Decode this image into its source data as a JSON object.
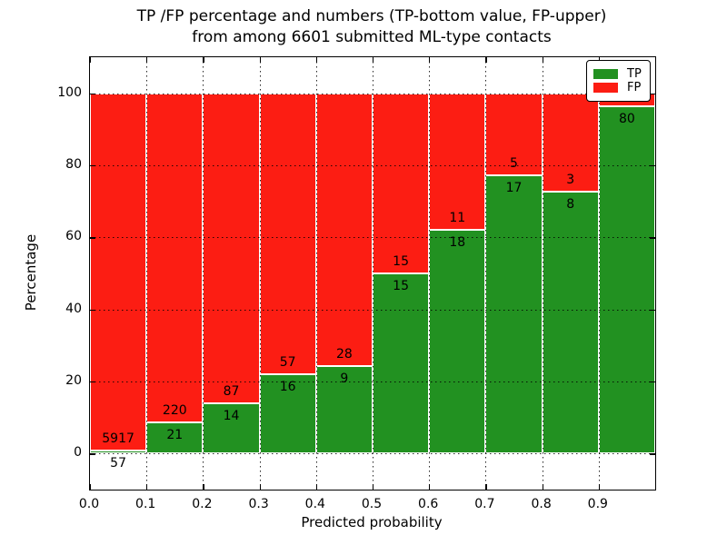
{
  "title": {
    "line1": "TP /FP percentage and numbers (TP-bottom value, FP-upper)",
    "line2": "from among 6601 submitted ML-type contacts"
  },
  "axes": {
    "x_label": "Predicted probability",
    "y_label": "Percentage",
    "x_tick_labels": [
      "0.0",
      "0.1",
      "0.2",
      "0.3",
      "0.4",
      "0.5",
      "0.6",
      "0.7",
      "0.8",
      "0.9"
    ],
    "y_tick_labels": [
      "0",
      "20",
      "40",
      "60",
      "80",
      "100"
    ],
    "y_tick_values": [
      0,
      20,
      40,
      60,
      80,
      100
    ]
  },
  "legend": {
    "items": [
      {
        "label": "TP",
        "color": "#229121"
      },
      {
        "label": "FP",
        "color": "#fc1d13"
      }
    ]
  },
  "colors": {
    "tp": "#229121",
    "fp": "#fc1d13",
    "frame": "#000000",
    "bar_edge": "#ffffff"
  },
  "chart_data": {
    "type": "bar",
    "stacked": true,
    "title": "TP /FP percentage and numbers (TP-bottom value, FP-upper)\nfrom among 6601 submitted ML-type contacts",
    "xlabel": "Predicted probability",
    "ylabel": "Percentage",
    "xlim": [
      0.0,
      1.0
    ],
    "ylim": [
      -10,
      110
    ],
    "grid": "dotted",
    "legend_position": "upper right",
    "bin_width": 0.1,
    "bin_starts": [
      0.0,
      0.1,
      0.2,
      0.3,
      0.4,
      0.5,
      0.6,
      0.7,
      0.8,
      0.9
    ],
    "series": [
      {
        "name": "TP",
        "color": "#229121",
        "percent": [
          0.95,
          8.71,
          13.86,
          21.92,
          24.32,
          50.0,
          62.07,
          77.27,
          72.73,
          96.39
        ],
        "counts": [
          57,
          21,
          14,
          16,
          9,
          15,
          18,
          17,
          8,
          80
        ]
      },
      {
        "name": "FP",
        "color": "#fc1d13",
        "percent": [
          99.05,
          91.29,
          86.14,
          78.08,
          75.68,
          50.0,
          37.93,
          22.73,
          27.27,
          3.61
        ],
        "counts": [
          5917,
          220,
          87,
          57,
          28,
          15,
          11,
          5,
          3,
          null
        ]
      }
    ]
  }
}
